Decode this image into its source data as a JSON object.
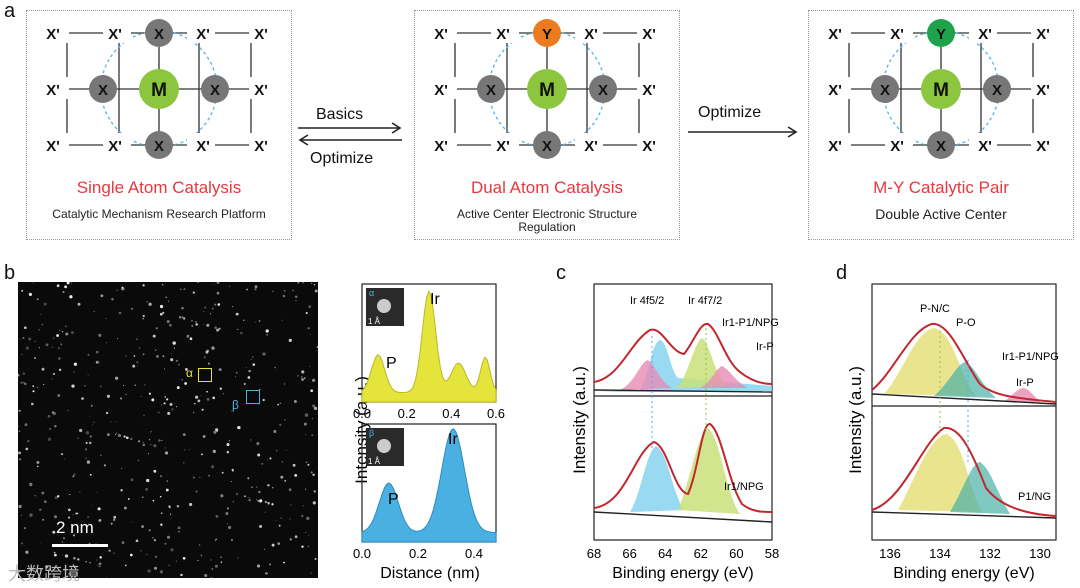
{
  "panel_a": {
    "letter": "a",
    "schemes": [
      {
        "title": "Single Atom Catalysis",
        "subtitle": "Catalytic Mechanism Research Platform",
        "top_atom": "X",
        "top_color": "#777777"
      },
      {
        "title": "Dual Atom Catalysis",
        "subtitle": "Active Center Electronic Structure Regulation",
        "top_atom": "Y",
        "top_color": "#ec7a1f"
      },
      {
        "title": "M-Y Catalytic Pair",
        "subtitle": "Double Active Center",
        "top_atom": "Y",
        "top_color": "#1ea34a"
      }
    ],
    "center_atom": "M",
    "side_atom": "X",
    "outer_atom": "X'",
    "arrow1_top": "Basics",
    "arrow1_bottom": "Optimize",
    "arrow2": "Optimize",
    "colors": {
      "title_red": "#e8383d",
      "m_green": "#8cc63f",
      "x_gray": "#777777",
      "ring_blue": "#4fb3e6"
    }
  },
  "panel_b": {
    "letter": "b",
    "scale_bar": "2 nm",
    "marker_alpha": "α",
    "marker_beta": "β",
    "y_label": "Intensity (a.u.)",
    "x_label": "Distance (nm)",
    "inset_scale": "1 Å",
    "profile_alpha": {
      "peak_labels": [
        "P",
        "Ir"
      ],
      "ticks": [
        "0.0",
        "0.2",
        "0.4",
        "0.6"
      ],
      "color": "#e4e43a"
    },
    "profile_beta": {
      "peak_labels": [
        "P",
        "Ir"
      ],
      "ticks": [
        "0.0",
        "0.2",
        "0.4"
      ],
      "color": "#4ab0e2"
    }
  },
  "panel_c": {
    "letter": "c",
    "y_label": "Intensity (a.u.)",
    "x_label": "Binding energy (eV)",
    "ticks": [
      "68",
      "66",
      "64",
      "62",
      "60",
      "58"
    ],
    "top_labels": {
      "ir_4f52": "Ir 4f5/2",
      "ir_4f72": "Ir 4f7/2",
      "sample": "Ir1-P1/NPG",
      "irp": "Ir-P"
    },
    "bottom_label": "Ir1/NPG"
  },
  "panel_d": {
    "letter": "d",
    "y_label": "Intensity (a.u.)",
    "x_label": "Binding energy (eV)",
    "ticks": [
      "136",
      "134",
      "132",
      "130"
    ],
    "top_labels": {
      "pnc": "P-N/C",
      "po": "P-O",
      "sample": "Ir1-P1/NPG",
      "irp": "Ir-P"
    },
    "bottom_label": "P1/NG"
  },
  "watermark": "大数跨境"
}
